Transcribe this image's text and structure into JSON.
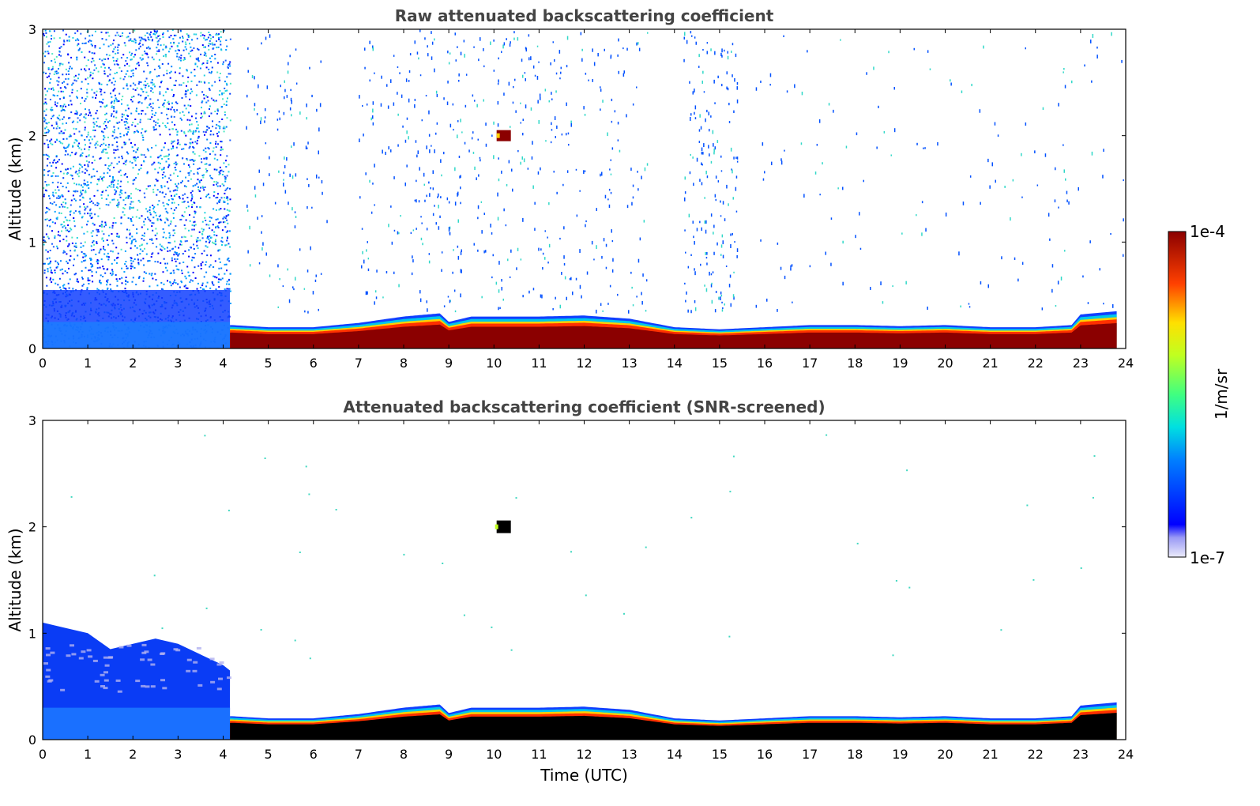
{
  "chart_data": [
    {
      "type": "heatmap",
      "title": "Raw attenuated backscattering coefficient",
      "xlabel": "",
      "ylabel": "Altitude (km)",
      "xlim": [
        0,
        24
      ],
      "ylim": [
        0,
        3
      ],
      "xticks": [
        "0",
        "1",
        "2",
        "3",
        "4",
        "5",
        "6",
        "7",
        "8",
        "9",
        "10",
        "11",
        "12",
        "13",
        "14",
        "15",
        "16",
        "17",
        "18",
        "19",
        "20",
        "21",
        "22",
        "23",
        "24"
      ],
      "yticks": [
        "0",
        "1",
        "2",
        "3"
      ],
      "boundary_layer_top_km": [
        [
          4.2,
          0.22
        ],
        [
          5,
          0.2
        ],
        [
          6,
          0.2
        ],
        [
          7,
          0.24
        ],
        [
          8,
          0.3
        ],
        [
          8.8,
          0.33
        ],
        [
          9,
          0.25
        ],
        [
          9.5,
          0.3
        ],
        [
          10,
          0.3
        ],
        [
          11,
          0.3
        ],
        [
          12,
          0.31
        ],
        [
          13,
          0.28
        ],
        [
          14,
          0.2
        ],
        [
          15,
          0.18
        ],
        [
          16,
          0.2
        ],
        [
          17,
          0.22
        ],
        [
          18,
          0.22
        ],
        [
          19,
          0.21
        ],
        [
          20,
          0.22
        ],
        [
          21,
          0.2
        ],
        [
          22,
          0.2
        ],
        [
          22.8,
          0.22
        ],
        [
          23,
          0.32
        ],
        [
          23.8,
          0.35
        ]
      ],
      "cloud_patch": {
        "time_utc": 10.2,
        "altitude_km": 2.0
      },
      "noise_extent": {
        "until_utc": 4.15,
        "top_km": 3.0
      }
    },
    {
      "type": "heatmap",
      "title": "Attenuated backscattering coefficient (SNR-screened)",
      "xlabel": "Time (UTC)",
      "ylabel": "Altitude (km)",
      "xlim": [
        0,
        24
      ],
      "ylim": [
        0,
        3
      ],
      "xticks": [
        "0",
        "1",
        "2",
        "3",
        "4",
        "5",
        "6",
        "7",
        "8",
        "9",
        "10",
        "11",
        "12",
        "13",
        "14",
        "15",
        "16",
        "17",
        "18",
        "19",
        "20",
        "21",
        "22",
        "23",
        "24"
      ],
      "yticks": [
        "0",
        "1",
        "2",
        "3"
      ],
      "early_layer_top_km": [
        [
          0,
          1.1
        ],
        [
          0.5,
          1.05
        ],
        [
          1,
          1.0
        ],
        [
          1.5,
          0.85
        ],
        [
          2,
          0.9
        ],
        [
          2.5,
          0.95
        ],
        [
          3,
          0.9
        ],
        [
          3.5,
          0.8
        ],
        [
          4,
          0.7
        ],
        [
          4.15,
          0.65
        ]
      ],
      "cloud_patch": {
        "time_utc": 10.2,
        "altitude_km": 2.0
      }
    }
  ],
  "colorbar": {
    "max_label": "1e-4",
    "min_label": "1e-7",
    "unit_label": "1/m/sr",
    "scale": "log"
  }
}
